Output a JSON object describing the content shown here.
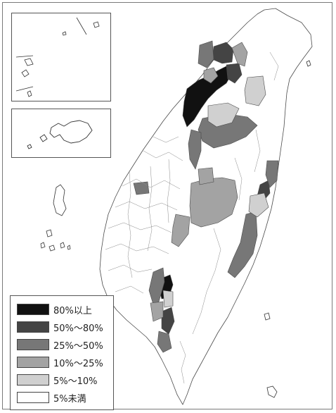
{
  "legend": {
    "items": [
      {
        "label": "80%以上",
        "color": "#111111"
      },
      {
        "label": "50%～80%",
        "color": "#444444"
      },
      {
        "label": "25%～50%",
        "color": "#777777"
      },
      {
        "label": "10%～25%",
        "color": "#a3a3a3"
      },
      {
        "label": "5%～10%",
        "color": "#d0d0d0"
      },
      {
        "label": "5%未満",
        "color": "#ffffff"
      }
    ]
  }
}
